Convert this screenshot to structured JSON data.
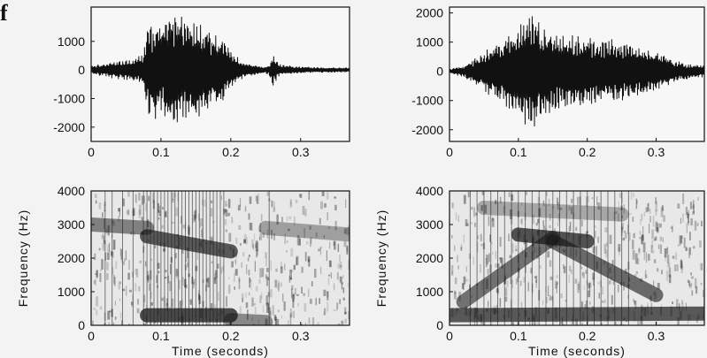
{
  "fragment": "f",
  "colors": {
    "ink": "#111111",
    "paper": "#f3f3f3",
    "spectro_light": "#e8e8e8",
    "spectro_dark": "#151515"
  },
  "chart_data": [
    {
      "type": "line",
      "panel": "waveform-left",
      "xlim": [
        0,
        0.37
      ],
      "ylim": [
        -2500,
        2200
      ],
      "xticks": [
        "0",
        "0.1",
        "0.2",
        "0.3"
      ],
      "xtick_values": [
        0,
        0.1,
        0.2,
        0.3
      ],
      "yticks": [
        "-2000",
        "-1000",
        "0",
        "1000"
      ],
      "ytick_values": [
        -2000,
        -1000,
        0,
        1000
      ],
      "xlabel": "",
      "ylabel": "",
      "envelope": [
        [
          0,
          150
        ],
        [
          0.03,
          300
        ],
        [
          0.06,
          400
        ],
        [
          0.075,
          600
        ],
        [
          0.08,
          1600
        ],
        [
          0.12,
          2000
        ],
        [
          0.16,
          1700
        ],
        [
          0.19,
          1100
        ],
        [
          0.2,
          700
        ],
        [
          0.22,
          250
        ],
        [
          0.25,
          120
        ],
        [
          0.255,
          200
        ],
        [
          0.26,
          600
        ],
        [
          0.27,
          200
        ],
        [
          0.3,
          120
        ],
        [
          0.37,
          80
        ]
      ]
    },
    {
      "type": "line",
      "panel": "waveform-right",
      "xlim": [
        0,
        0.37
      ],
      "ylim": [
        -2400,
        2200
      ],
      "xticks": [
        "0",
        "0.1",
        "0.2",
        "0.3"
      ],
      "xtick_values": [
        0,
        0.1,
        0.2,
        0.3
      ],
      "yticks": [
        "-2000",
        "-1000",
        "0",
        "1000",
        "2000"
      ],
      "ytick_values": [
        -2000,
        -1000,
        0,
        1000,
        2000
      ],
      "xlabel": "",
      "ylabel": "",
      "envelope": [
        [
          0,
          80
        ],
        [
          0.02,
          200
        ],
        [
          0.05,
          700
        ],
        [
          0.08,
          1200
        ],
        [
          0.1,
          1700
        ],
        [
          0.12,
          2000
        ],
        [
          0.15,
          1400
        ],
        [
          0.2,
          1200
        ],
        [
          0.25,
          1100
        ],
        [
          0.3,
          700
        ],
        [
          0.33,
          350
        ],
        [
          0.37,
          200
        ]
      ]
    },
    {
      "type": "heatmap",
      "panel": "spectrogram-left",
      "xlim": [
        0,
        0.37
      ],
      "ylim": [
        0,
        4000
      ],
      "xticks": [
        "0",
        "0.1",
        "0.2",
        "0.3"
      ],
      "xtick_values": [
        0,
        0.1,
        0.2,
        0.3
      ],
      "yticks": [
        "0",
        "1000",
        "2000",
        "3000",
        "4000"
      ],
      "ytick_values": [
        0,
        1000,
        2000,
        3000,
        4000
      ],
      "xlabel": "Time (seconds)",
      "ylabel": "Frequency (Hz)",
      "formants": [
        {
          "t": [
            0.0,
            0.08
          ],
          "f": [
            3000,
            2900
          ],
          "strength": 0.65
        },
        {
          "t": [
            0.08,
            0.2
          ],
          "f": [
            2650,
            2200
          ],
          "strength": 0.9
        },
        {
          "t": [
            0.08,
            0.2
          ],
          "f": [
            300,
            300
          ],
          "strength": 1.0
        },
        {
          "t": [
            0.2,
            0.25
          ],
          "f": [
            150,
            100
          ],
          "strength": 0.6
        },
        {
          "t": [
            0.25,
            0.37
          ],
          "f": [
            2900,
            2700
          ],
          "strength": 0.45
        }
      ],
      "striations": [
        0.02,
        0.03,
        0.045,
        0.06,
        0.075,
        0.08,
        0.085,
        0.09,
        0.095,
        0.1,
        0.105,
        0.11,
        0.115,
        0.12,
        0.125,
        0.13,
        0.135,
        0.14,
        0.145,
        0.15,
        0.155,
        0.16,
        0.165,
        0.17,
        0.175,
        0.18,
        0.185,
        0.19,
        0.255
      ]
    },
    {
      "type": "heatmap",
      "panel": "spectrogram-right",
      "xlim": [
        0,
        0.37
      ],
      "ylim": [
        0,
        4000
      ],
      "xticks": [
        "0",
        "0.1",
        "0.2",
        "0.3"
      ],
      "xtick_values": [
        0,
        0.1,
        0.2,
        0.3
      ],
      "yticks": [
        "0",
        "1000",
        "2000",
        "3000",
        "4000"
      ],
      "ytick_values": [
        0,
        1000,
        2000,
        3000,
        4000
      ],
      "xlabel": "Time (seconds)",
      "ylabel": "Frequency (Hz)",
      "formants": [
        {
          "t": [
            0.02,
            0.15
          ],
          "f": [
            700,
            2600
          ],
          "strength": 0.75
        },
        {
          "t": [
            0.1,
            0.2
          ],
          "f": [
            2700,
            2500
          ],
          "strength": 0.95
        },
        {
          "t": [
            0.15,
            0.3
          ],
          "f": [
            2500,
            900
          ],
          "strength": 0.8
        },
        {
          "t": [
            0.0,
            0.37
          ],
          "f": [
            300,
            350
          ],
          "strength": 0.9
        },
        {
          "t": [
            0.05,
            0.25
          ],
          "f": [
            3500,
            3300
          ],
          "strength": 0.4
        }
      ],
      "striations": [
        0.03,
        0.04,
        0.05,
        0.06,
        0.07,
        0.08,
        0.09,
        0.1,
        0.11,
        0.12,
        0.13,
        0.14,
        0.15,
        0.16,
        0.17,
        0.18,
        0.19,
        0.2,
        0.21,
        0.22,
        0.23,
        0.24,
        0.25,
        0.26
      ]
    }
  ]
}
